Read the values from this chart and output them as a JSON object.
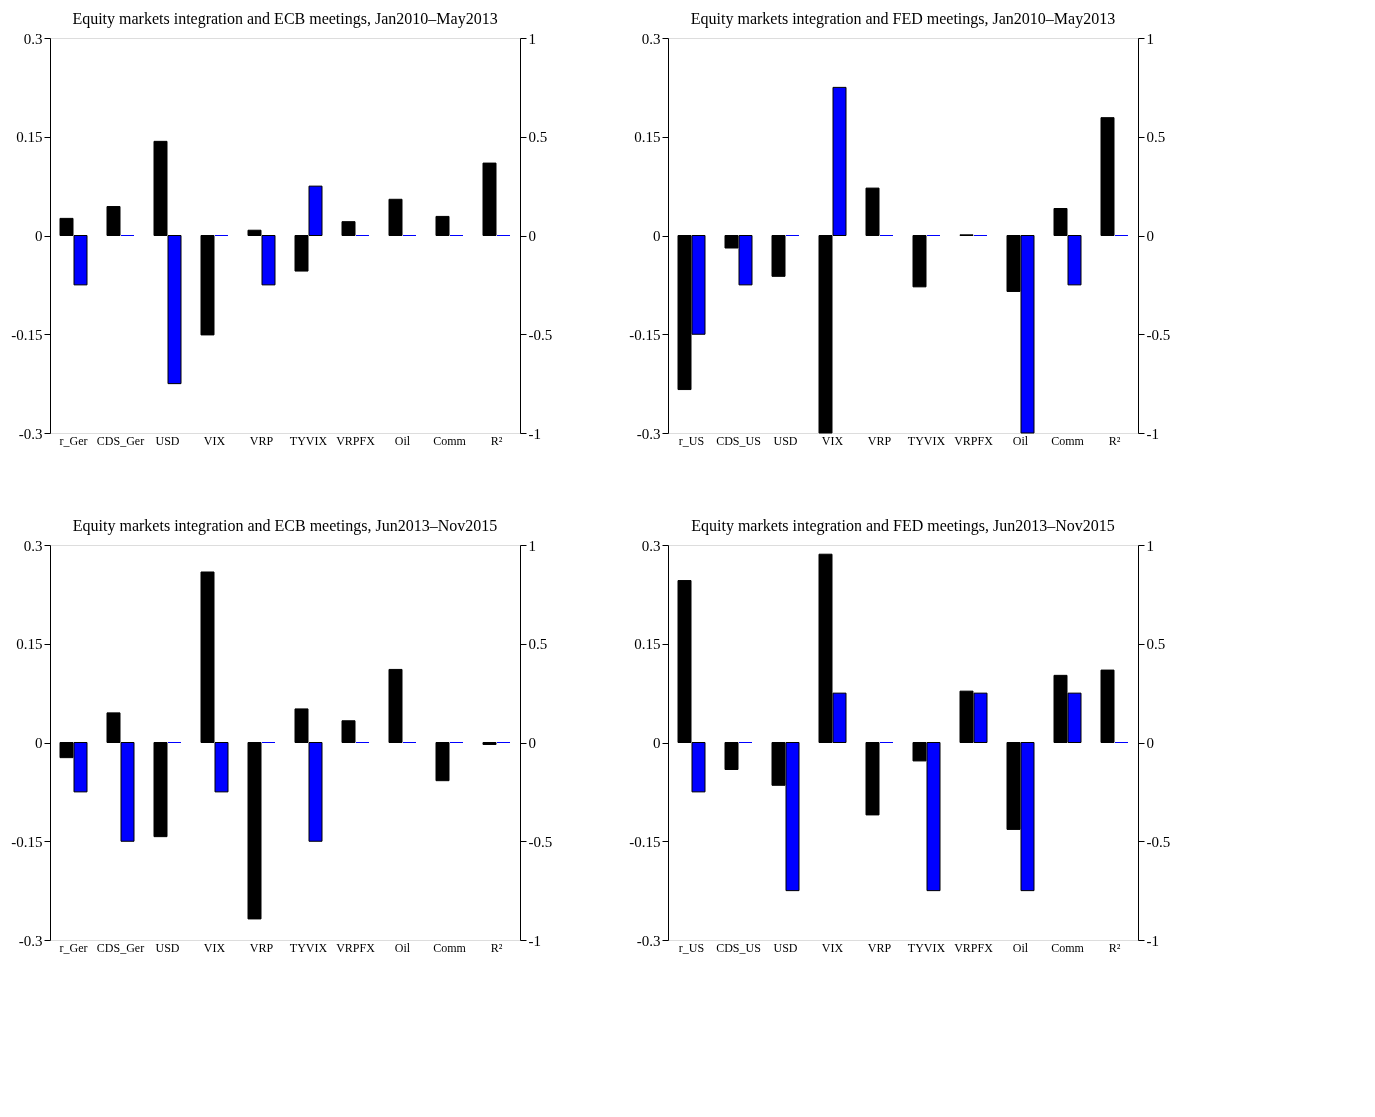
{
  "chart_data": [
    {
      "type": "bar",
      "title": "Equity markets integration and ECB meetings, Jan2010–May2013",
      "categories": [
        "r_Ger",
        "CDS_Ger",
        "USD",
        "VIX",
        "VRP",
        "TYVIX",
        "VRPFX",
        "Oil",
        "Comm",
        "R²"
      ],
      "series": [
        {
          "color": "#000000",
          "axis": "y",
          "values": [
            0.026,
            0.044,
            0.143,
            -0.151,
            0.008,
            -0.054,
            0.021,
            0.055,
            0.029,
            0.11
          ]
        },
        {
          "color": "#0000ff",
          "axis": "y2",
          "values": [
            -0.25,
            0,
            -0.75,
            0,
            -0.25,
            0.25,
            0,
            0,
            0,
            0
          ]
        }
      ],
      "ylim": [
        -0.3,
        0.3
      ],
      "yticks": [
        -0.3,
        -0.15,
        0,
        0.15,
        0.3
      ],
      "y2lim": [
        -1,
        1
      ],
      "y2ticks": [
        -1,
        -0.5,
        0,
        0.5,
        1
      ]
    },
    {
      "type": "bar",
      "title": "Equity markets integration and FED meetings, Jan2010–May2013",
      "categories": [
        "r_US",
        "CDS_US",
        "USD",
        "VIX",
        "VRP",
        "TYVIX",
        "VRPFX",
        "Oil",
        "Comm",
        "R²"
      ],
      "series": [
        {
          "color": "#000000",
          "axis": "y",
          "values": [
            -0.234,
            -0.019,
            -0.062,
            -0.3,
            0.072,
            -0.078,
            0.001,
            -0.085,
            0.041,
            0.179
          ]
        },
        {
          "color": "#0000ff",
          "axis": "y2",
          "values": [
            -0.5,
            -0.25,
            0,
            0.75,
            0,
            0,
            0,
            -1,
            -0.25,
            0
          ]
        }
      ],
      "ylim": [
        -0.3,
        0.3
      ],
      "yticks": [
        -0.3,
        -0.15,
        0,
        0.15,
        0.3
      ],
      "y2lim": [
        -1,
        1
      ],
      "y2ticks": [
        -1,
        -0.5,
        0,
        0.5,
        1
      ]
    },
    {
      "type": "bar",
      "title": "Equity markets integration and ECB meetings, Jun2013–Nov2015",
      "categories": [
        "r_Ger",
        "CDS_Ger",
        "USD",
        "VIX",
        "VRP",
        "TYVIX",
        "VRPFX",
        "Oil",
        "Comm",
        "R²"
      ],
      "series": [
        {
          "color": "#000000",
          "axis": "y",
          "values": [
            -0.023,
            0.045,
            -0.143,
            0.259,
            -0.268,
            0.051,
            0.033,
            0.111,
            -0.058,
            -0.003
          ]
        },
        {
          "color": "#0000ff",
          "axis": "y2",
          "values": [
            -0.25,
            -0.5,
            0,
            -0.25,
            0,
            -0.5,
            0,
            0,
            0,
            0
          ]
        }
      ],
      "ylim": [
        -0.3,
        0.3
      ],
      "yticks": [
        -0.3,
        -0.15,
        0,
        0.15,
        0.3
      ],
      "y2lim": [
        -1,
        1
      ],
      "y2ticks": [
        -1,
        -0.5,
        0,
        0.5,
        1
      ]
    },
    {
      "type": "bar",
      "title": "Equity markets integration and FED meetings, Jun2013–Nov2015",
      "categories": [
        "r_US",
        "CDS_US",
        "USD",
        "VIX",
        "VRP",
        "TYVIX",
        "VRPFX",
        "Oil",
        "Comm",
        "R²"
      ],
      "series": [
        {
          "color": "#000000",
          "axis": "y",
          "values": [
            0.246,
            -0.041,
            -0.065,
            0.286,
            -0.11,
            -0.028,
            0.078,
            -0.132,
            0.102,
            0.11
          ]
        },
        {
          "color": "#0000ff",
          "axis": "y2",
          "values": [
            -0.25,
            0,
            -0.75,
            0.25,
            0,
            -0.75,
            0.25,
            -0.75,
            0.25,
            0
          ]
        }
      ],
      "ylim": [
        -0.3,
        0.3
      ],
      "yticks": [
        -0.3,
        -0.15,
        0,
        0.15,
        0.3
      ],
      "y2lim": [
        -1,
        1
      ],
      "y2ticks": [
        -1,
        -0.5,
        0,
        0.5,
        1
      ]
    }
  ]
}
